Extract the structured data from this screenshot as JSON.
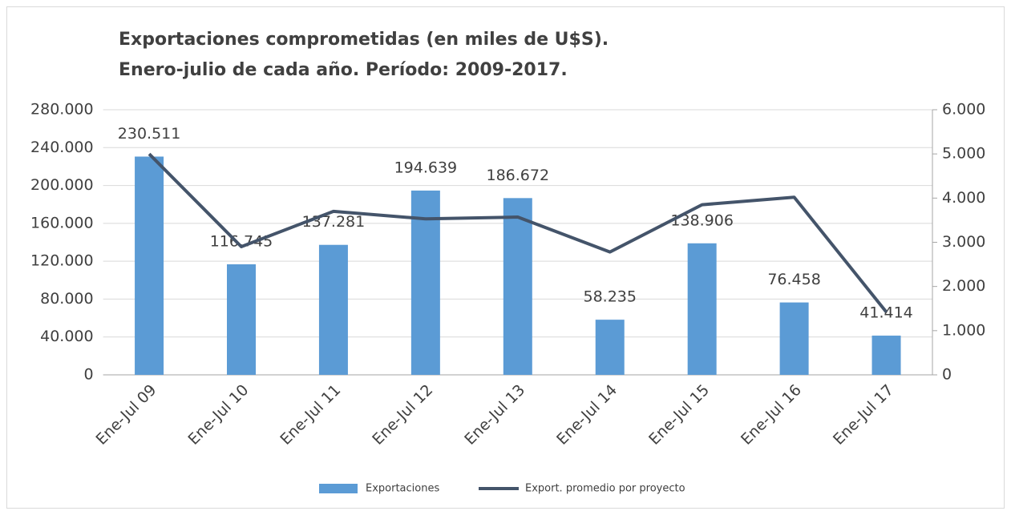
{
  "chart_data": {
    "type": "bar",
    "title": [
      "Exportaciones comprometidas (en miles de U$S).",
      "Enero-julio de cada año. Período: 2009-2017."
    ],
    "categories": [
      "Ene-Jul 09",
      "Ene-Jul 10",
      "Ene-Jul 11",
      "Ene-Jul 12",
      "Ene-Jul 13",
      "Ene-Jul 14",
      "Ene-Jul 15",
      "Ene-Jul 16",
      "Ene-Jul 17"
    ],
    "series": [
      {
        "name": "Exportaciones",
        "type": "bar",
        "color": "#5b9bd5",
        "values": [
          230511,
          116745,
          137281,
          194639,
          186672,
          58235,
          138906,
          76458,
          41414
        ],
        "value_labels": [
          "230.511",
          "116.745",
          "137.281",
          "194.639",
          "186.672",
          "58.235",
          "138.906",
          "76.458",
          "41.414"
        ]
      },
      {
        "name": "Export. promedio por proyecto",
        "type": "line",
        "axis": "y2",
        "color": "#44546a",
        "values": [
          5000,
          2900,
          3700,
          3530,
          3570,
          2780,
          3850,
          4020,
          1420
        ]
      }
    ],
    "ylim": [
      0,
      280000
    ],
    "yticks": [
      0,
      {
        "value": 40000,
        "label": "40.000"
      },
      {
        "value": 80000,
        "label": "80.000"
      },
      {
        "value": 120000,
        "label": "120.000"
      },
      {
        "value": 160000,
        "label": "160.000"
      },
      {
        "value": 200000,
        "label": "200.000"
      },
      {
        "value": 240000,
        "label": "240.000"
      },
      {
        "value": 280000,
        "label": "280.000"
      }
    ],
    "y2lim": [
      0,
      6000
    ],
    "y2ticks": [
      0,
      {
        "value": 1000,
        "label": "1.000"
      },
      {
        "value": 2000,
        "label": "2.000"
      },
      {
        "value": 3000,
        "label": "3.000"
      },
      {
        "value": 4000,
        "label": "4.000"
      },
      {
        "value": 5000,
        "label": "5.000"
      },
      {
        "value": 6000,
        "label": "6.000"
      }
    ],
    "grid": true,
    "legend": "bottom"
  }
}
